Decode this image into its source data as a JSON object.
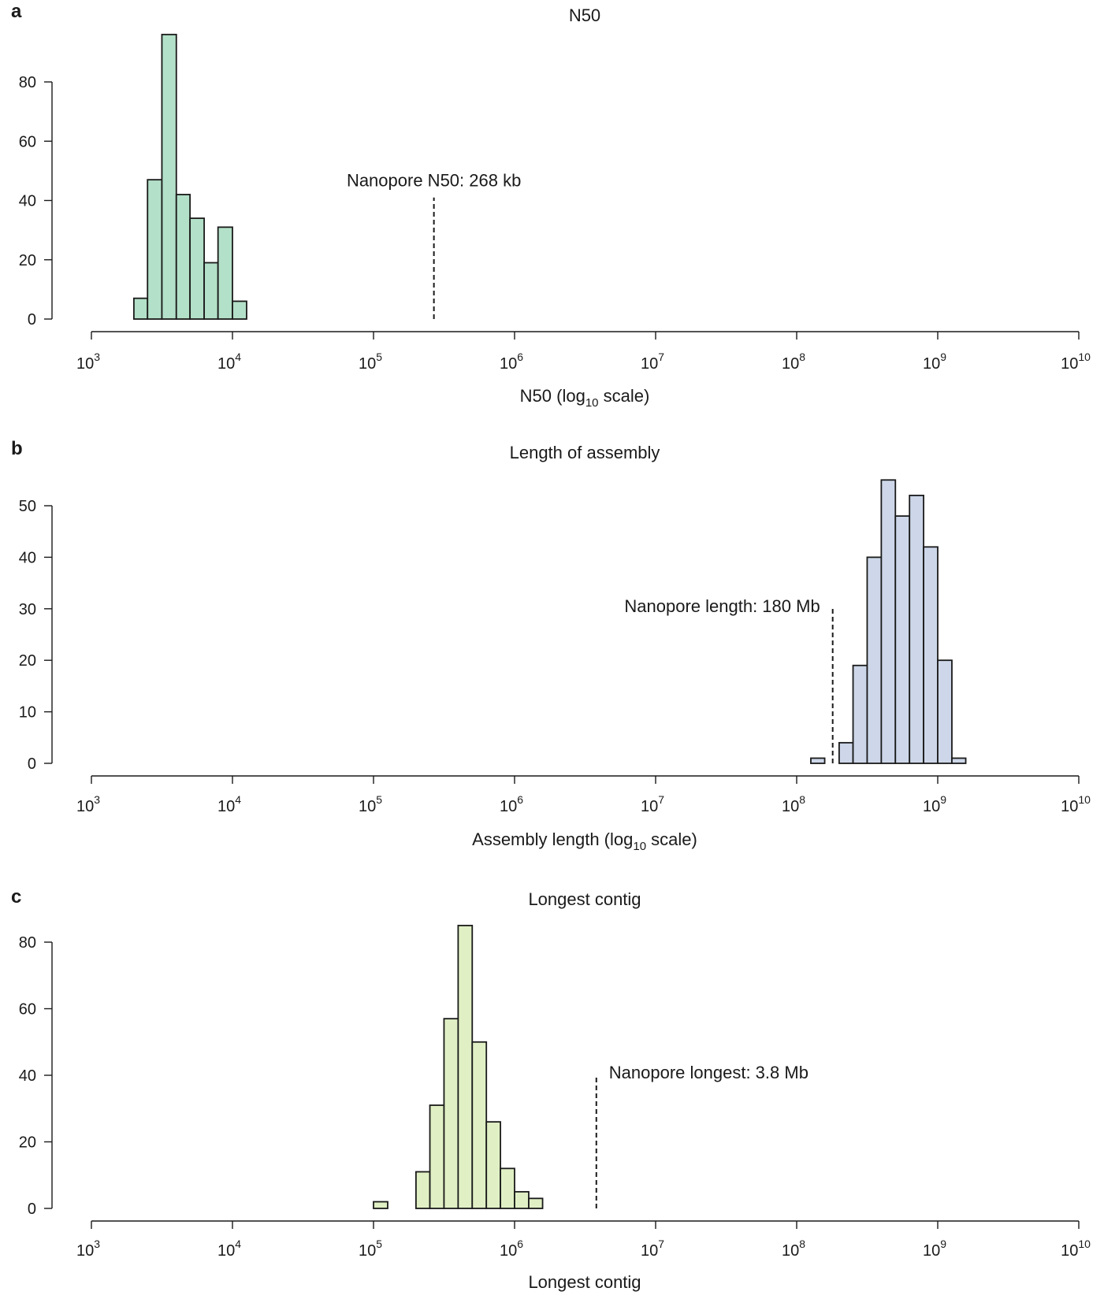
{
  "chart_data": [
    {
      "panel": "a",
      "type": "bar",
      "title": "N50",
      "xlabel": "N50 (log",
      "xlabel_sub": "10",
      "xlabel_end": " scale)",
      "x_scale": "log10",
      "x_ticks": [
        {
          "base": "10",
          "exp": "3"
        },
        {
          "base": "10",
          "exp": "4"
        },
        {
          "base": "10",
          "exp": "5"
        },
        {
          "base": "10",
          "exp": "6"
        },
        {
          "base": "10",
          "exp": "7"
        },
        {
          "base": "10",
          "exp": "8"
        },
        {
          "base": "10",
          "exp": "9"
        },
        {
          "base": "10",
          "exp": "10"
        }
      ],
      "xlim": [
        1000,
        10000000000
      ],
      "y_ticks": [
        "0",
        "20",
        "40",
        "60",
        "80"
      ],
      "ylim": [
        0,
        80
      ],
      "bin_edges": [
        2000,
        2500,
        3160,
        4000,
        5000,
        6300,
        7900,
        10000,
        12600
      ],
      "values": [
        7,
        47,
        96,
        42,
        34,
        19,
        31,
        6
      ],
      "fill": "#b3e0c8",
      "reference_line": {
        "x": 268000,
        "label": "Nanopore N50: 268 kb",
        "label_side": "above",
        "top": 41
      }
    },
    {
      "panel": "b",
      "type": "bar",
      "title": "Length of assembly",
      "xlabel": "Assembly length (log",
      "xlabel_sub": "10",
      "xlabel_end": " scale)",
      "x_scale": "log10",
      "x_ticks": [
        {
          "base": "10",
          "exp": "3"
        },
        {
          "base": "10",
          "exp": "4"
        },
        {
          "base": "10",
          "exp": "5"
        },
        {
          "base": "10",
          "exp": "6"
        },
        {
          "base": "10",
          "exp": "7"
        },
        {
          "base": "10",
          "exp": "8"
        },
        {
          "base": "10",
          "exp": "9"
        },
        {
          "base": "10",
          "exp": "10"
        }
      ],
      "xlim": [
        1000,
        10000000000
      ],
      "y_ticks": [
        "0",
        "10",
        "20",
        "30",
        "40",
        "50"
      ],
      "ylim": [
        0,
        50
      ],
      "bin_edges": [
        126000000,
        158000000,
        200000000,
        251000000,
        316000000,
        398000000,
        501000000,
        631000000,
        794000000,
        1000000000,
        1260000000,
        1580000000
      ],
      "values": [
        1,
        0,
        4,
        19,
        40,
        55,
        48,
        52,
        42,
        20,
        1
      ],
      "fill": "#cdd7e9",
      "reference_line": {
        "x": 180000000,
        "label": "Nanopore length: 180 Mb",
        "label_side": "left",
        "top": 30
      }
    },
    {
      "panel": "c",
      "type": "bar",
      "title": "Longest contig",
      "xlabel": "Longest contig",
      "xlabel_sub": "",
      "xlabel_end": "",
      "x_scale": "log10",
      "x_ticks": [
        {
          "base": "10",
          "exp": "3"
        },
        {
          "base": "10",
          "exp": "4"
        },
        {
          "base": "10",
          "exp": "5"
        },
        {
          "base": "10",
          "exp": "6"
        },
        {
          "base": "10",
          "exp": "7"
        },
        {
          "base": "10",
          "exp": "8"
        },
        {
          "base": "10",
          "exp": "9"
        },
        {
          "base": "10",
          "exp": "10"
        }
      ],
      "xlim": [
        1000,
        10000000000
      ],
      "y_ticks": [
        "0",
        "20",
        "40",
        "60",
        "80"
      ],
      "ylim": [
        0,
        80
      ],
      "bin_edges": [
        100000,
        126000,
        158000,
        200000,
        251000,
        316000,
        398000,
        501000,
        631000,
        794000,
        1000000,
        1260000,
        1580000
      ],
      "values": [
        2,
        0,
        0,
        11,
        31,
        57,
        85,
        50,
        26,
        12,
        5,
        3
      ],
      "fill": "#e0f0c4",
      "reference_line": {
        "x": 3800000,
        "label": "Nanopore longest: 3.8 Mb",
        "label_side": "right",
        "top": 40
      }
    }
  ]
}
